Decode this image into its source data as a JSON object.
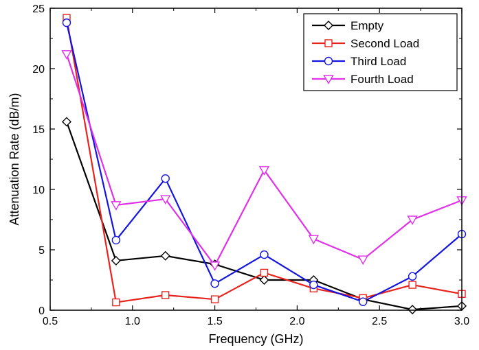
{
  "chart_data": {
    "type": "line",
    "xlabel": "Frequency (GHz)",
    "ylabel": "Attenuation Rate (dB/m)",
    "xlim": [
      0.5,
      3.0
    ],
    "ylim": [
      0,
      25
    ],
    "xticks": [
      "0.5",
      "1.0",
      "1.5",
      "2.0",
      "2.5",
      "3.0"
    ],
    "yticks": [
      "0",
      "5",
      "10",
      "15",
      "20",
      "25"
    ],
    "x": [
      0.6,
      0.9,
      1.2,
      1.5,
      1.8,
      2.1,
      2.4,
      2.7,
      3.0
    ],
    "legend_position": "top-right",
    "grid": false,
    "series": [
      {
        "name": "Empty",
        "color": "#000000",
        "marker": "diamond",
        "values": [
          15.6,
          4.1,
          4.5,
          3.8,
          2.5,
          2.5,
          0.9,
          0.05,
          0.35
        ]
      },
      {
        "name": "Second Load",
        "color": "#e8231e",
        "marker": "square",
        "values": [
          24.2,
          0.65,
          1.25,
          0.9,
          3.1,
          1.8,
          1.0,
          2.1,
          1.35
        ]
      },
      {
        "name": "Third Load",
        "color": "#1414e0",
        "marker": "circle",
        "values": [
          23.8,
          5.8,
          10.9,
          2.2,
          4.6,
          2.1,
          0.7,
          2.8,
          6.3
        ]
      },
      {
        "name": "Fourth Load",
        "color": "#e030e8",
        "marker": "triangle-down",
        "values": [
          21.2,
          8.7,
          9.2,
          3.7,
          11.6,
          5.9,
          4.2,
          7.5,
          9.1
        ]
      }
    ]
  }
}
